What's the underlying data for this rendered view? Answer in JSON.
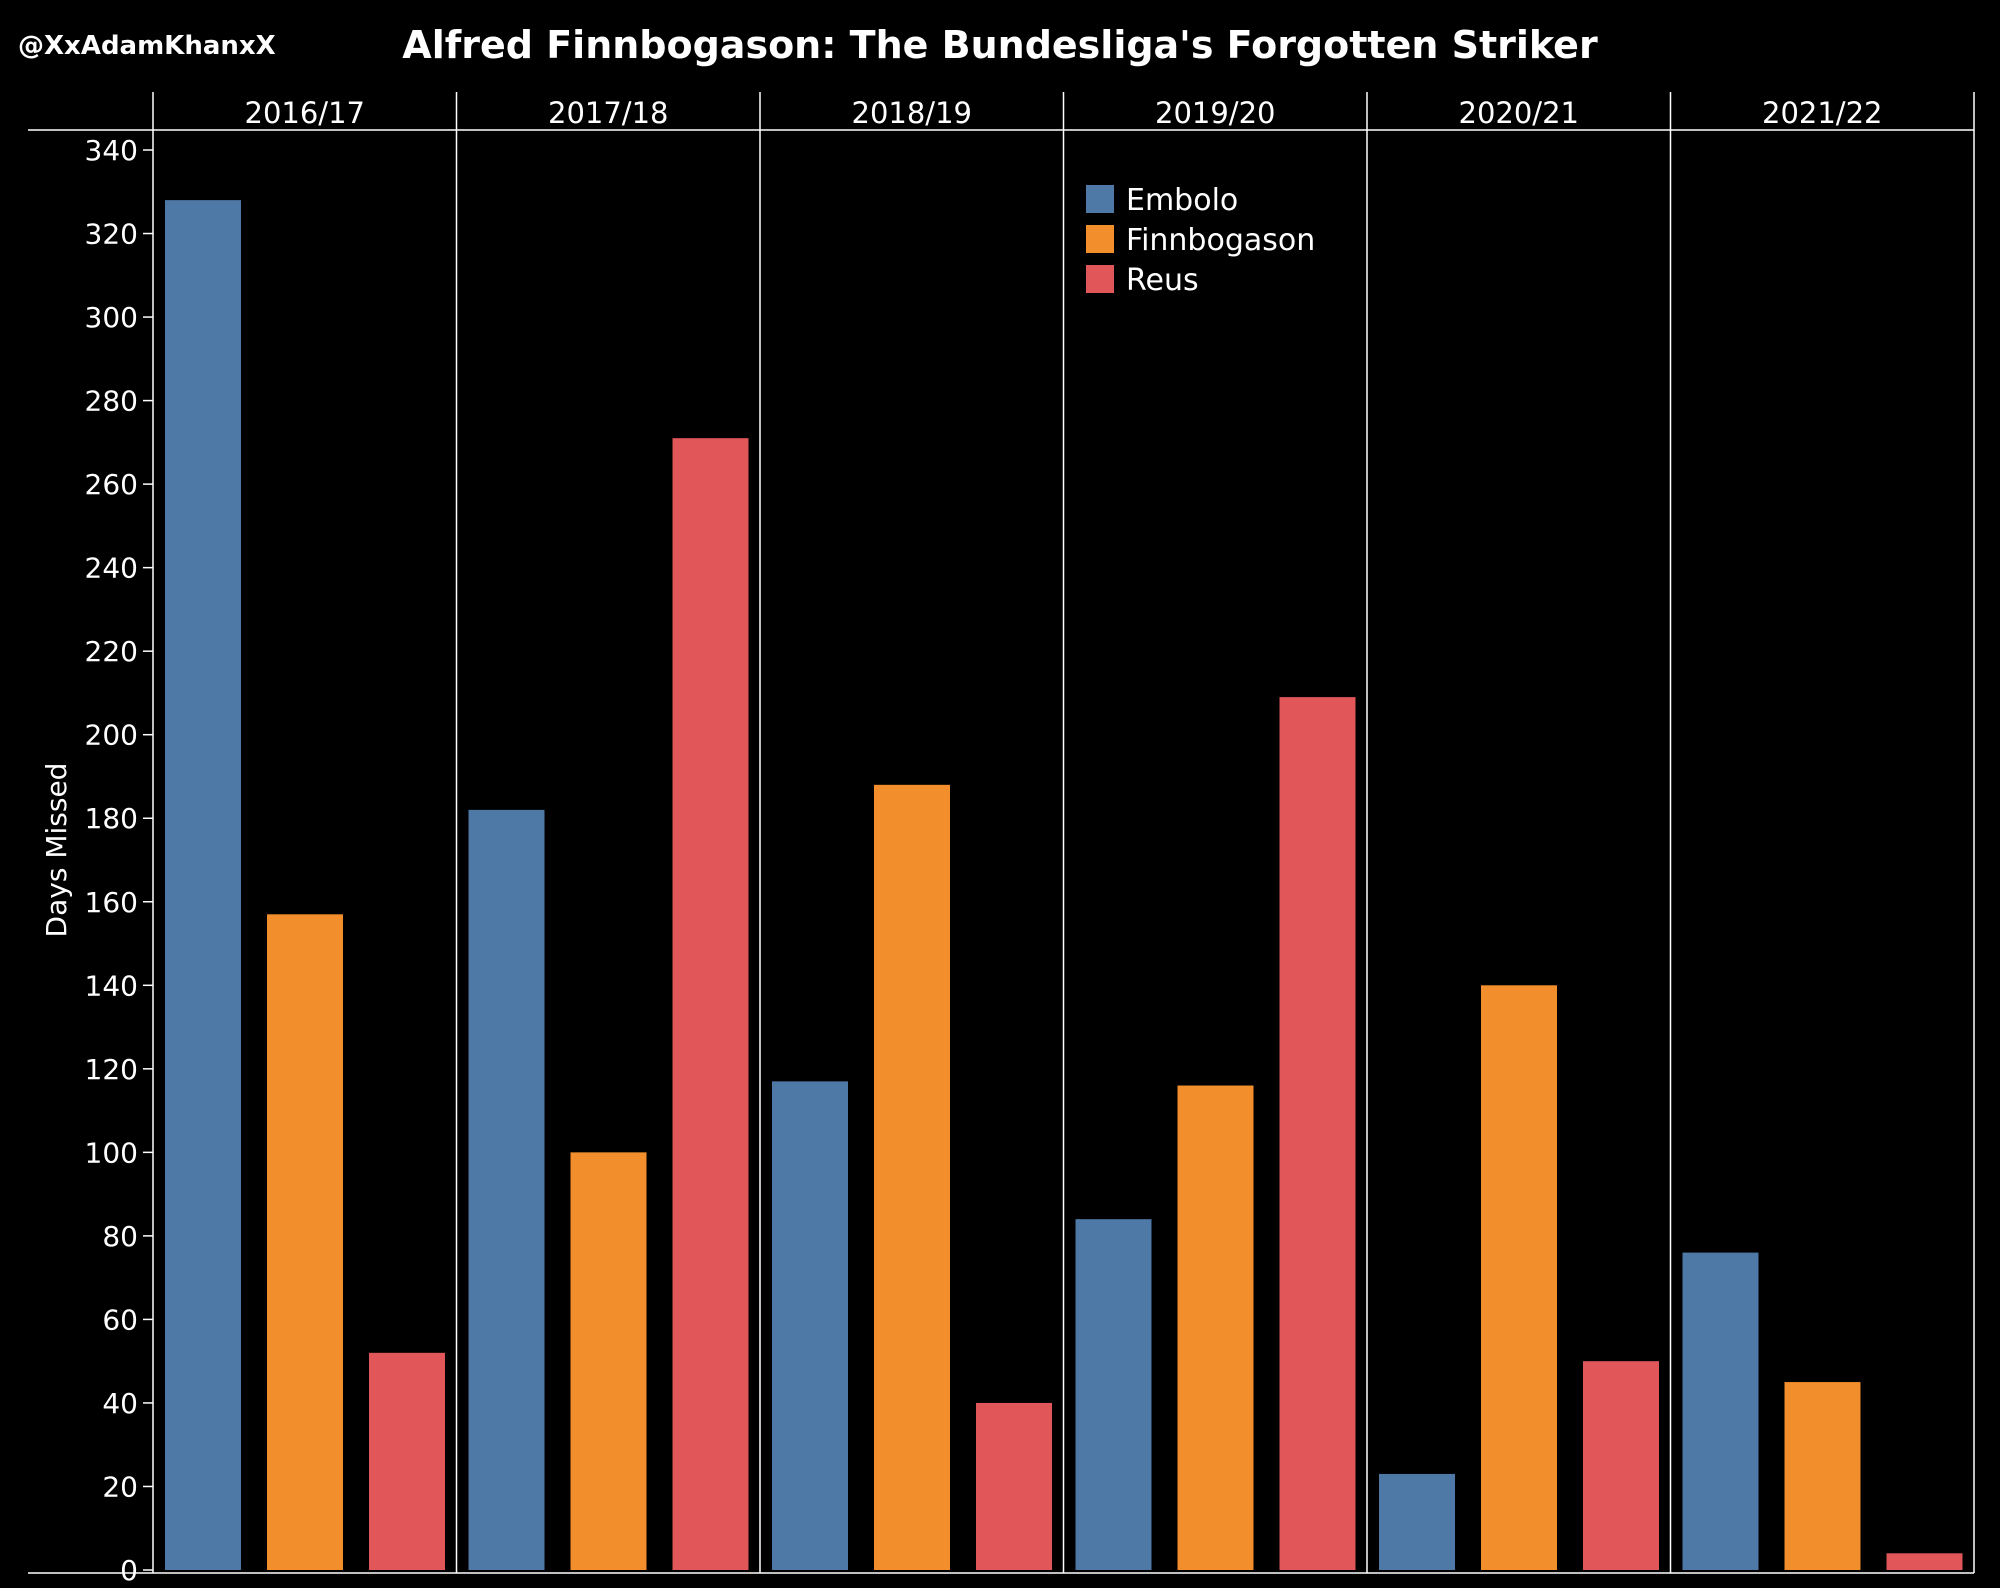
{
  "header": {
    "handle": "@XxAdamKhanxX"
  },
  "chart_data": {
    "type": "bar",
    "title": "Alfred Finnbogason: The Bundesliga's Forgotten Striker",
    "xlabel": "",
    "ylabel": "Days Missed",
    "ylim": [
      0,
      340
    ],
    "yticks": [
      0,
      20,
      40,
      60,
      80,
      100,
      120,
      140,
      160,
      180,
      200,
      220,
      240,
      260,
      280,
      300,
      320,
      340
    ],
    "grid": false,
    "legend_position": "top-center",
    "categories": [
      "2016/17",
      "2017/18",
      "2018/19",
      "2019/20",
      "2020/21",
      "2021/22"
    ],
    "series": [
      {
        "name": "Embolo",
        "color": "#4e79a7",
        "values": [
          328,
          182,
          117,
          84,
          23,
          76
        ]
      },
      {
        "name": "Finnbogason",
        "color": "#f28e2b",
        "values": [
          157,
          100,
          188,
          116,
          140,
          45
        ]
      },
      {
        "name": "Reus",
        "color": "#e15759",
        "values": [
          52,
          271,
          40,
          209,
          50,
          4
        ]
      }
    ]
  }
}
